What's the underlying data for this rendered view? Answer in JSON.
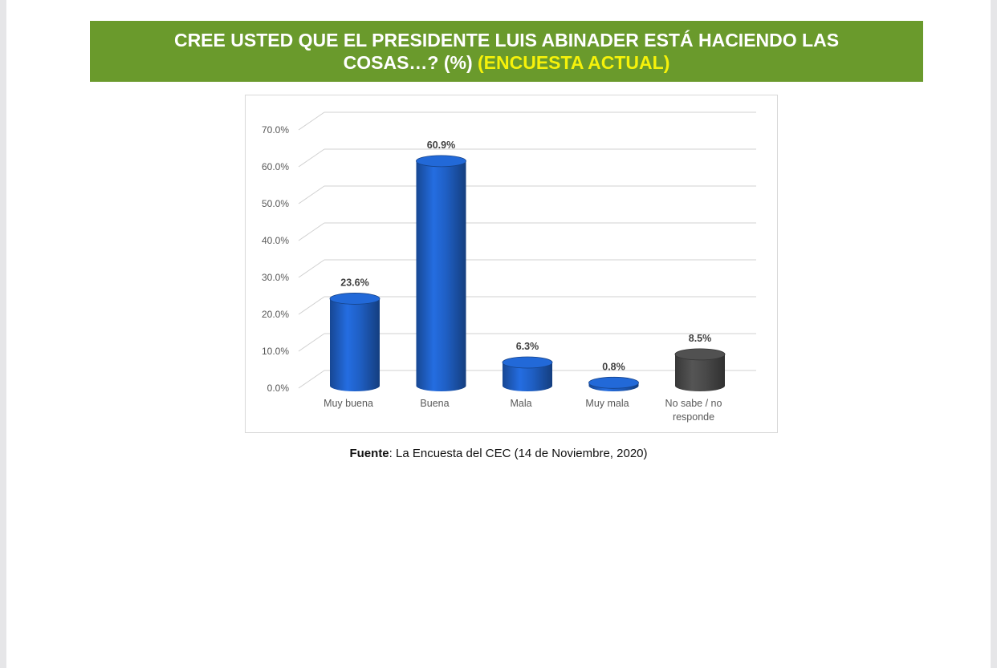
{
  "header": {
    "title_line1": "CREE USTED QUE EL PRESIDENTE LUIS ABINADER ESTÁ HACIENDO LAS",
    "title_line2": "COSAS…? (%)",
    "title_accent": "(ENCUESTA ACTUAL)"
  },
  "footer": {
    "source_label": "Fuente",
    "source_text": ": La Encuesta del CEC (14 de Noviembre, 2020)"
  },
  "colors": {
    "banner": "#6a9a2c",
    "accent_text": "#f6f20a",
    "bar_blue": "#1f5fc4",
    "bar_gray": "#4a4a4a"
  },
  "chart_data": {
    "type": "bar",
    "style": "3d-cylinder",
    "categories": [
      "Muy buena",
      "Buena",
      "Mala",
      "Muy mala",
      "No sabe / no responde"
    ],
    "category_lines": [
      [
        "Muy buena"
      ],
      [
        "Buena"
      ],
      [
        "Mala"
      ],
      [
        "Muy mala"
      ],
      [
        "No sabe / no",
        "responde"
      ]
    ],
    "values": [
      23.6,
      60.9,
      6.3,
      0.8,
      8.5
    ],
    "value_labels": [
      "23.6%",
      "60.9%",
      "6.3%",
      "0.8%",
      "8.5%"
    ],
    "bar_colors": [
      "#1f5fc4",
      "#1f5fc4",
      "#1f5fc4",
      "#1f5fc4",
      "#4a4a4a"
    ],
    "ylim": [
      0,
      70
    ],
    "yticks": [
      0,
      10,
      20,
      30,
      40,
      50,
      60,
      70
    ],
    "ytick_labels": [
      "0.0%",
      "10.0%",
      "20.0%",
      "30.0%",
      "40.0%",
      "50.0%",
      "60.0%",
      "70.0%"
    ],
    "grid": true,
    "legend": "none"
  }
}
